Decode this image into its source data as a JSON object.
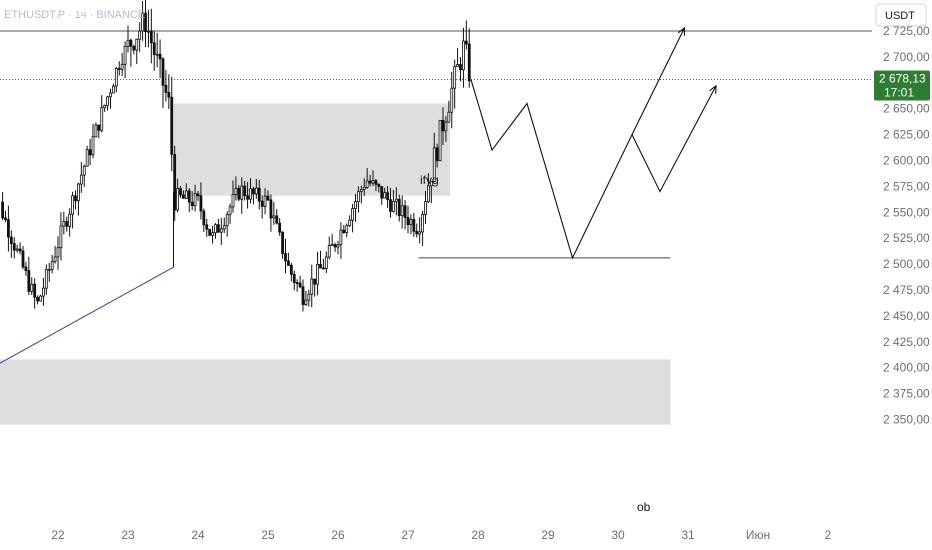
{
  "symbol_label": "ETHUSDT.P · 1ч · BINANCE",
  "currency": "USDT",
  "last_price": "2 678,13",
  "countdown": "17:01",
  "colors": {
    "candle": "#111111",
    "zone": "#dcdcdc",
    "trendline": "#3b3b9e",
    "last_badge": "#2e7d32",
    "projection": "#111111",
    "dotted_line": "#2e7d32"
  },
  "chart_data": {
    "type": "candlestick",
    "ylim": [
      2340,
      2745
    ],
    "y_ticks": [
      2350,
      2375,
      2400,
      2425,
      2450,
      2475,
      2500,
      2525,
      2550,
      2575,
      2600,
      2625,
      2650,
      2675,
      2700,
      2725
    ],
    "y_tick_labels": [
      "2 350,00",
      "2 375,00",
      "2 400,00",
      "2 425,00",
      "2 450,00",
      "2 475,00",
      "2 500,00",
      "2 525,00",
      "2 550,00",
      "2 575,00",
      "2 600,00",
      "2 625,00",
      "2 650,00",
      "2 675,00",
      "2 700,00",
      "2 725,00"
    ],
    "x_ticks": [
      "22",
      "23",
      "24",
      "25",
      "26",
      "27",
      "28",
      "29",
      "30",
      "31",
      "Июн",
      "2"
    ],
    "key_points": [
      {
        "day": 21.15,
        "price": 2560
      },
      {
        "day": 21.7,
        "price": 2460
      },
      {
        "day": 22.9,
        "price": 2700
      },
      {
        "day": 23.25,
        "price": 2735
      },
      {
        "day": 23.6,
        "price": 2650
      },
      {
        "day": 23.65,
        "price": 2565
      },
      {
        "day": 24.0,
        "price": 2560
      },
      {
        "day": 24.2,
        "price": 2525
      },
      {
        "day": 24.6,
        "price": 2572
      },
      {
        "day": 25.0,
        "price": 2560
      },
      {
        "day": 25.3,
        "price": 2495
      },
      {
        "day": 25.5,
        "price": 2470
      },
      {
        "day": 25.8,
        "price": 2500
      },
      {
        "day": 26.1,
        "price": 2540
      },
      {
        "day": 26.4,
        "price": 2582
      },
      {
        "day": 26.9,
        "price": 2550
      },
      {
        "day": 27.15,
        "price": 2535
      },
      {
        "day": 27.35,
        "price": 2595
      },
      {
        "day": 27.55,
        "price": 2650
      },
      {
        "day": 27.8,
        "price": 2710
      },
      {
        "day": 27.9,
        "price": 2678
      }
    ],
    "zones": [
      {
        "label": "ifvg",
        "start_day": 23.65,
        "end_day": 27.6,
        "low": 2566,
        "high": 2655
      },
      {
        "label": "ob",
        "start_day": 21.0,
        "end_day": 30.75,
        "low": 2345,
        "high": 2408
      }
    ],
    "levels": [
      {
        "price": 2725,
        "style": "solid"
      },
      {
        "price": 2678.13,
        "style": "dotted"
      },
      {
        "price": 2506,
        "start_day": 27.15,
        "end_day": 30.75,
        "style": "solid"
      }
    ],
    "trendline": {
      "from": {
        "day": 21.0,
        "price": 2398
      },
      "to": {
        "day": 23.65,
        "price": 2497
      }
    },
    "projection_path": [
      {
        "day": 27.9,
        "price": 2678
      },
      {
        "day": 28.2,
        "price": 2610
      },
      {
        "day": 28.7,
        "price": 2655
      },
      {
        "day": 29.35,
        "price": 2506
      },
      {
        "day": 30.2,
        "price": 2625
      },
      {
        "day": 30.6,
        "price": 2570
      },
      {
        "day": 31.4,
        "price": 2672
      }
    ],
    "projection_path_2": [
      {
        "day": 30.2,
        "price": 2625
      },
      {
        "day": 30.95,
        "price": 2728
      }
    ]
  }
}
